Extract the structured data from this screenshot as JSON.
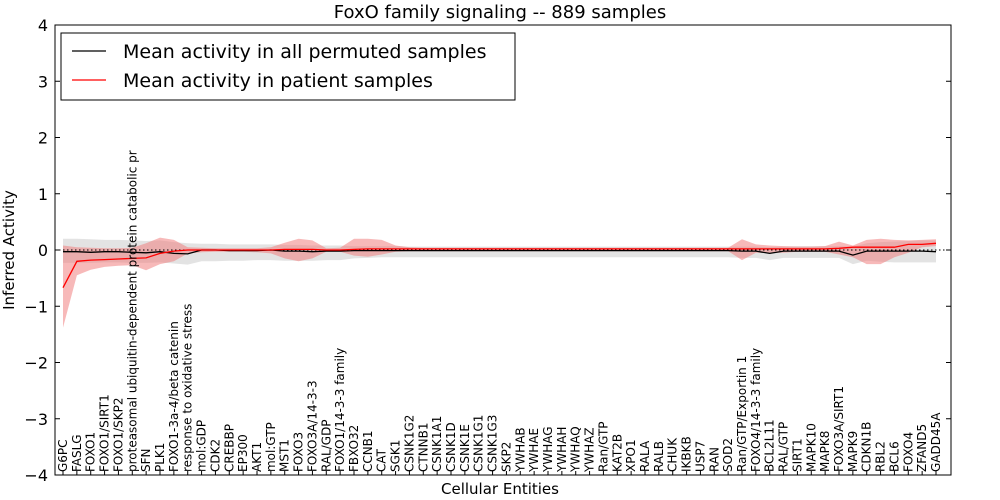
{
  "chart_data": {
    "type": "line",
    "title": "FoxO family signaling -- 889 samples",
    "xlabel": "Cellular Entities",
    "ylabel": "Inferred Activity",
    "ylim": [
      -4,
      4
    ],
    "yticks": [
      4,
      3,
      2,
      1,
      0,
      -1,
      -2,
      -3,
      -4
    ],
    "ytick_labels": [
      "4",
      "3",
      "2",
      "1",
      "0",
      "−1",
      "−2",
      "−3",
      "−4"
    ],
    "grid": false,
    "zero_line": "dotted",
    "legend_position": "top-left",
    "categories": [
      "G6PC",
      "FASLG",
      "FOXO1",
      "FOXO1/SIRT1",
      "FOXO1/SKP2",
      "proteasomal ubiquitin-dependent protein catabolic pr",
      "SFN",
      "PLK1",
      "FOXO1-3a-4/beta catenin",
      "response to oxidative stress",
      "mol:GDP",
      "CDK2",
      "CREBBP",
      "EP300",
      "AKT1",
      "mol:GTP",
      "MST1",
      "FOXO3",
      "FOXO3A/14-3-3",
      "RAL/GDP",
      "FOXO1/14-3-3 family",
      "FBXO32",
      "CCNB1",
      "CAT",
      "SGK1",
      "CSNK1G2",
      "CTNNB1",
      "CSNK1A1",
      "CSNK1D",
      "CSNK1E",
      "CSNK1G1",
      "CSNK1G3",
      "SKP2",
      "YWHAB",
      "YWHAE",
      "YWHAG",
      "YWHAH",
      "YWHAQ",
      "YWHAZ",
      "Ran/GTP",
      "KAT2B",
      "XPO1",
      "RALA",
      "RALB",
      "CHUK",
      "IKBKB",
      "USP7",
      "RAN",
      "SOD2",
      "Ran/GTP/Exportin 1",
      "FOXO4/14-3-3 family",
      "BCL2L11",
      "RAL/GTP",
      "SIRT1",
      "MAPK10",
      "MAPK8",
      "FOXO3A/SIRT1",
      "MAPK9",
      "CDKN1B",
      "RBL2",
      "BCL6",
      "FOXO4",
      "ZFAND5",
      "GADD45A"
    ],
    "series": [
      {
        "name": "Mean activity in all permuted samples",
        "color": "#000000",
        "band_color": "#c8c8c8",
        "values": [
          -0.03,
          -0.03,
          -0.04,
          -0.03,
          -0.03,
          -0.04,
          -0.05,
          -0.03,
          -0.06,
          -0.07,
          0.0,
          0.0,
          -0.01,
          -0.01,
          -0.01,
          0.0,
          -0.02,
          -0.02,
          -0.03,
          -0.02,
          -0.02,
          -0.01,
          -0.01,
          -0.01,
          -0.01,
          -0.01,
          -0.01,
          -0.01,
          -0.01,
          -0.01,
          -0.01,
          -0.01,
          -0.01,
          -0.01,
          -0.01,
          -0.01,
          -0.01,
          -0.01,
          -0.01,
          -0.01,
          -0.01,
          -0.01,
          -0.01,
          -0.01,
          -0.01,
          -0.01,
          -0.01,
          -0.01,
          -0.01,
          -0.02,
          -0.02,
          -0.06,
          -0.02,
          -0.02,
          -0.02,
          -0.02,
          -0.02,
          -0.09,
          -0.02,
          -0.02,
          -0.02,
          -0.02,
          -0.02,
          -0.03
        ],
        "lower": [
          -0.23,
          -0.23,
          -0.23,
          -0.22,
          -0.22,
          -0.23,
          -0.23,
          -0.22,
          -0.24,
          -0.26,
          -0.2,
          -0.2,
          -0.19,
          -0.19,
          -0.18,
          -0.18,
          -0.19,
          -0.19,
          -0.19,
          -0.18,
          -0.18,
          -0.15,
          -0.14,
          -0.13,
          -0.13,
          -0.13,
          -0.13,
          -0.13,
          -0.13,
          -0.13,
          -0.13,
          -0.13,
          -0.13,
          -0.13,
          -0.13,
          -0.13,
          -0.13,
          -0.13,
          -0.13,
          -0.13,
          -0.13,
          -0.13,
          -0.13,
          -0.13,
          -0.13,
          -0.13,
          -0.13,
          -0.13,
          -0.13,
          -0.14,
          -0.14,
          -0.18,
          -0.14,
          -0.14,
          -0.14,
          -0.14,
          -0.14,
          -0.25,
          -0.19,
          -0.21,
          -0.22,
          -0.22,
          -0.22,
          -0.22
        ],
        "upper": [
          0.2,
          0.2,
          0.19,
          0.18,
          0.18,
          0.17,
          0.16,
          0.17,
          0.14,
          0.12,
          0.11,
          0.11,
          0.1,
          0.1,
          0.1,
          0.1,
          0.09,
          0.09,
          0.08,
          0.08,
          0.08,
          0.07,
          0.07,
          0.07,
          0.07,
          0.06,
          0.06,
          0.06,
          0.06,
          0.06,
          0.06,
          0.06,
          0.06,
          0.06,
          0.06,
          0.06,
          0.06,
          0.06,
          0.06,
          0.06,
          0.06,
          0.06,
          0.06,
          0.06,
          0.06,
          0.06,
          0.06,
          0.06,
          0.06,
          0.06,
          0.06,
          0.05,
          0.06,
          0.07,
          0.07,
          0.07,
          0.07,
          0.06,
          0.12,
          0.14,
          0.15,
          0.16,
          0.17,
          0.17
        ]
      },
      {
        "name": "Mean activity in patient samples",
        "color": "#ff0000",
        "band_color": "#f08080",
        "values": [
          -0.67,
          -0.2,
          -0.18,
          -0.17,
          -0.16,
          -0.15,
          -0.14,
          -0.06,
          -0.02,
          0.0,
          0.0,
          0.0,
          0.0,
          0.0,
          0.0,
          0.0,
          0.01,
          0.01,
          0.01,
          0.0,
          0.0,
          0.01,
          0.02,
          0.02,
          0.02,
          0.02,
          0.02,
          0.02,
          0.02,
          0.02,
          0.02,
          0.02,
          0.02,
          0.02,
          0.02,
          0.02,
          0.02,
          0.02,
          0.02,
          0.02,
          0.02,
          0.02,
          0.02,
          0.02,
          0.02,
          0.02,
          0.02,
          0.02,
          0.02,
          0.02,
          0.02,
          0.02,
          0.02,
          0.02,
          0.02,
          0.02,
          0.03,
          0.05,
          0.05,
          0.05,
          0.05,
          0.1,
          0.1,
          0.12
        ],
        "lower": [
          -1.38,
          -0.45,
          -0.35,
          -0.3,
          -0.28,
          -0.27,
          -0.36,
          -0.25,
          -0.2,
          -0.06,
          -0.04,
          -0.03,
          -0.03,
          -0.03,
          -0.04,
          -0.06,
          -0.15,
          -0.2,
          -0.15,
          -0.03,
          -0.03,
          -0.1,
          -0.12,
          -0.08,
          -0.03,
          -0.02,
          -0.02,
          -0.02,
          -0.02,
          -0.02,
          -0.02,
          -0.02,
          -0.02,
          -0.02,
          -0.02,
          -0.02,
          -0.02,
          -0.02,
          -0.02,
          -0.02,
          -0.02,
          -0.02,
          -0.02,
          -0.02,
          -0.02,
          -0.02,
          -0.02,
          -0.02,
          -0.02,
          -0.18,
          -0.05,
          -0.05,
          -0.05,
          -0.03,
          -0.03,
          -0.03,
          -0.08,
          -0.13,
          -0.25,
          -0.25,
          -0.13,
          -0.05,
          0.05,
          0.07
        ],
        "upper": [
          0.08,
          0.05,
          0.04,
          0.03,
          0.03,
          0.04,
          0.12,
          0.22,
          0.18,
          0.05,
          0.04,
          0.03,
          0.03,
          0.03,
          0.03,
          0.05,
          0.13,
          0.2,
          0.17,
          0.03,
          0.04,
          0.2,
          0.2,
          0.18,
          0.08,
          0.05,
          0.04,
          0.04,
          0.04,
          0.04,
          0.04,
          0.04,
          0.04,
          0.04,
          0.04,
          0.04,
          0.04,
          0.04,
          0.04,
          0.04,
          0.04,
          0.04,
          0.04,
          0.04,
          0.04,
          0.04,
          0.04,
          0.04,
          0.04,
          0.19,
          0.1,
          0.08,
          0.07,
          0.06,
          0.06,
          0.07,
          0.15,
          0.08,
          0.18,
          0.2,
          0.18,
          0.17,
          0.18,
          0.19
        ]
      }
    ]
  }
}
